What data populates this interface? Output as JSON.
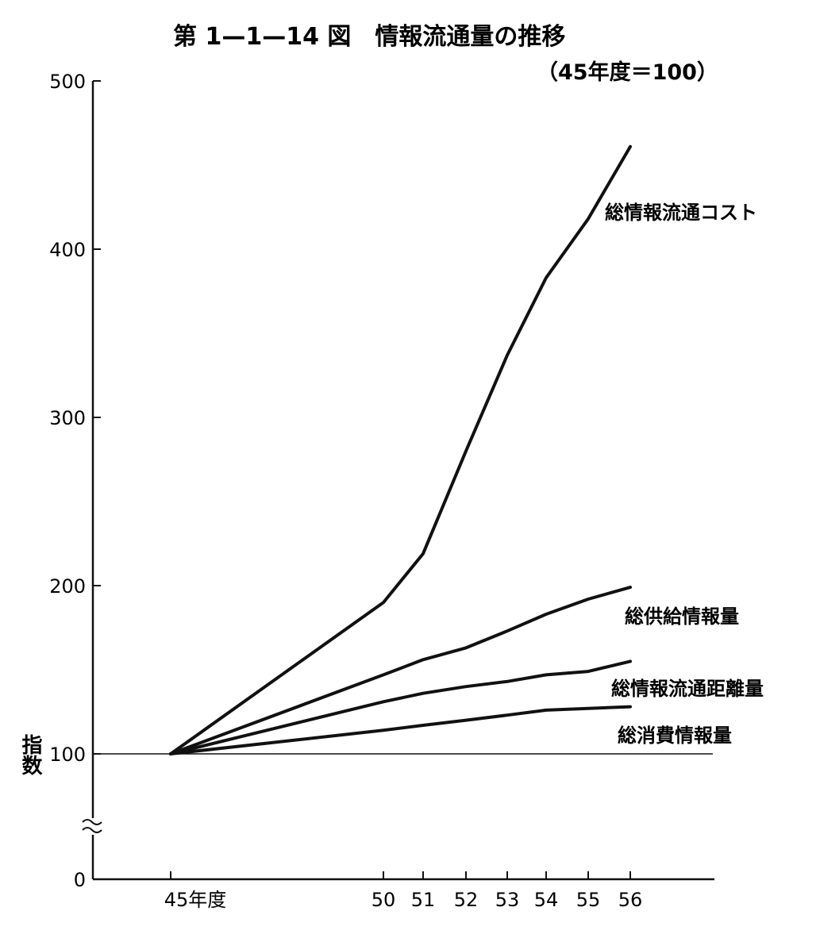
{
  "chart_data": {
    "type": "line",
    "title": "第 1—1—14 図　情報流通量の推移",
    "subtitle": "（45年度＝100）",
    "ylabel": "指数",
    "xlabel": "",
    "x": [
      45,
      50,
      51,
      52,
      53,
      54,
      55,
      56
    ],
    "x_tick_labels": [
      "45年度",
      "50",
      "51",
      "52",
      "53",
      "54",
      "55",
      "56"
    ],
    "y_ticks": [
      0,
      100,
      200,
      300,
      400,
      500
    ],
    "y_tick_labels": [
      "0",
      "100",
      "200",
      "300",
      "400",
      "500"
    ],
    "ylim": [
      0,
      500
    ],
    "y_axis_break": "between 0 and 100",
    "baseline": 100,
    "grid": false,
    "legend": "none (series labeled directly at line ends)",
    "series": [
      {
        "name": "総情報流通コスト",
        "values": [
          100,
          190,
          219,
          280,
          337,
          383,
          418,
          461
        ]
      },
      {
        "name": "総供給情報量",
        "values": [
          100,
          147,
          156,
          163,
          173,
          183,
          192,
          199
        ]
      },
      {
        "name": "総情報流通距離量",
        "values": [
          100,
          131,
          136,
          140,
          143,
          147,
          149,
          155
        ]
      },
      {
        "name": "総消費情報量",
        "values": [
          100,
          114,
          117,
          120,
          123,
          126,
          127,
          128
        ]
      }
    ]
  }
}
